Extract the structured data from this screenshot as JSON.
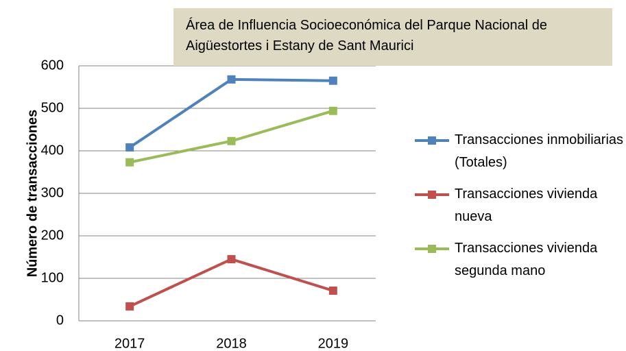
{
  "chart_data": {
    "type": "line",
    "title": "Área de Influencia Socioeconómica del Parque Nacional de Aigüestortes i Estany de Sant Maurici",
    "y_label": "Número de transacciones",
    "categories": [
      "2017",
      "2018",
      "2019"
    ],
    "series": [
      {
        "name": "Transacciones inmobiliarias (Totales)",
        "color": "#4f81bd",
        "values": [
          408,
          568,
          565
        ]
      },
      {
        "name": "Transacciones vivienda nueva",
        "color": "#c0504d",
        "values": [
          34,
          145,
          71
        ]
      },
      {
        "name": "Transacciones vivienda segunda mano",
        "color": "#9bbb59",
        "values": [
          373,
          423,
          494
        ]
      }
    ],
    "ylim": [
      0,
      600
    ],
    "yticks": [
      0,
      100,
      200,
      300,
      400,
      500,
      600
    ],
    "grid": true,
    "legend": "right"
  }
}
